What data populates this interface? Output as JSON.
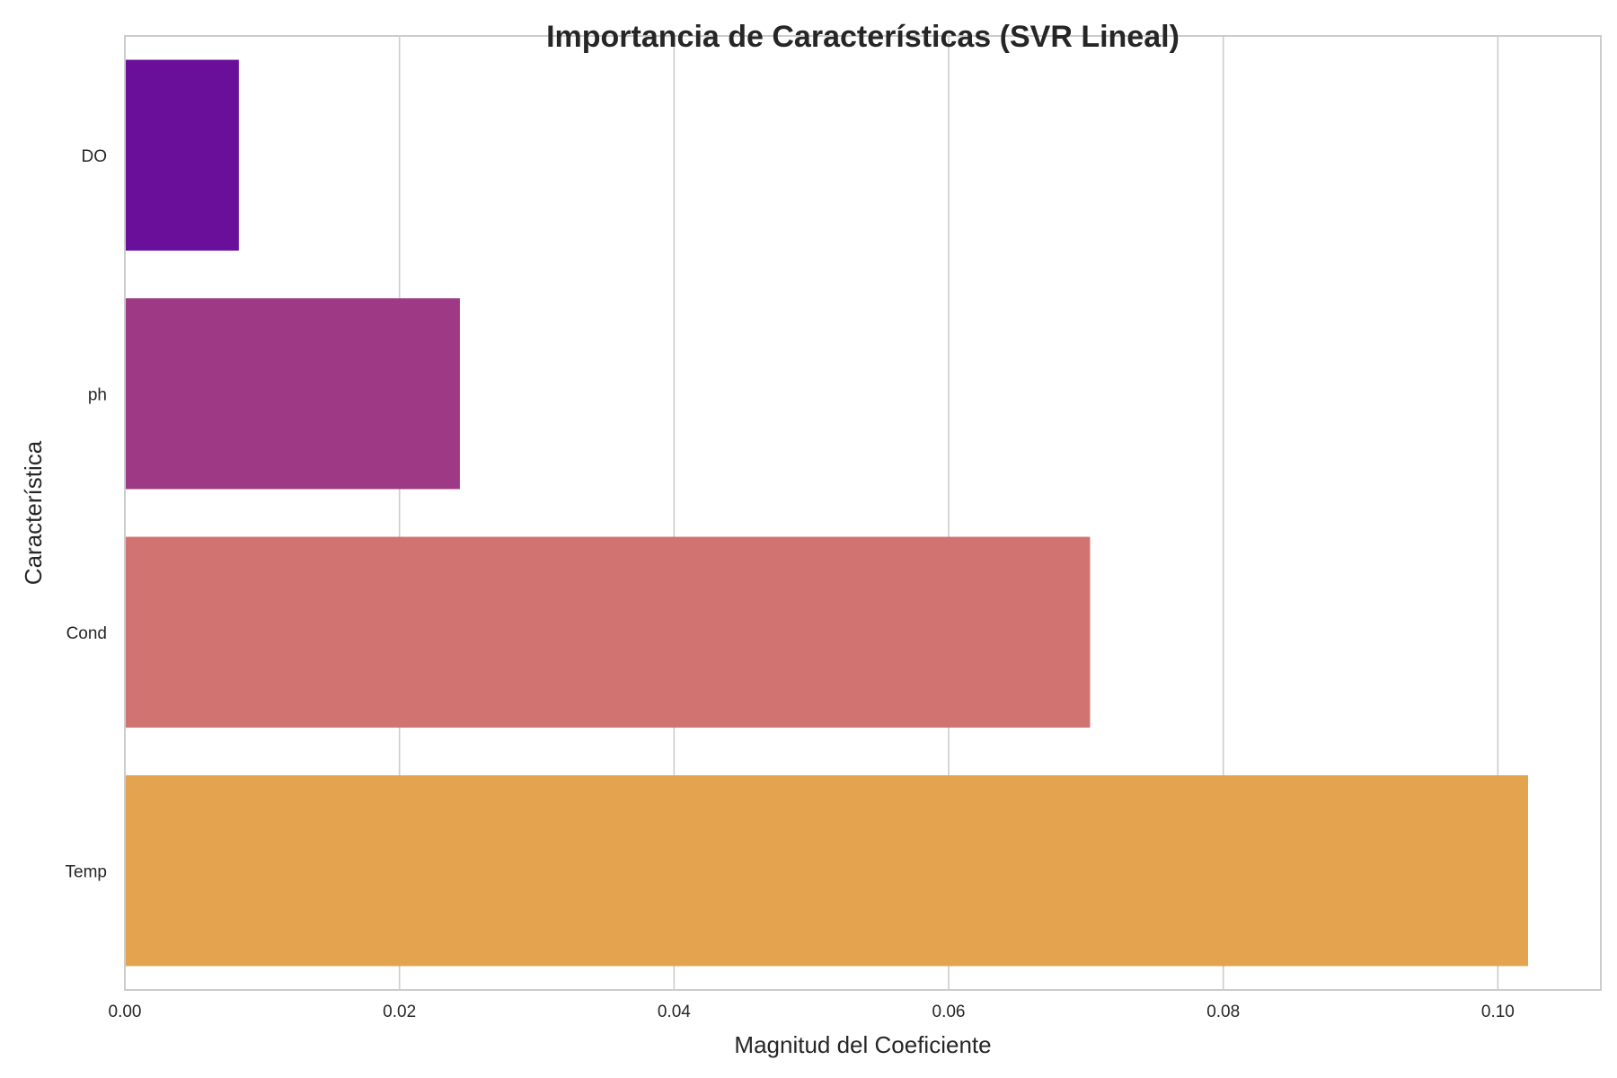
{
  "chart_data": {
    "type": "bar",
    "orientation": "horizontal",
    "title": "Importancia de Características (SVR Lineal)",
    "xlabel": "Magnitud del Coeficiente",
    "ylabel": "Característica",
    "categories": [
      "DO",
      "ph",
      "Cond",
      "Temp"
    ],
    "values": [
      0.0083,
      0.0244,
      0.0703,
      0.1022
    ],
    "colors": [
      "#6a0f99",
      "#9e3a85",
      "#d07371",
      "#e4a34f"
    ],
    "xlim": [
      0,
      0.1075
    ],
    "xticks": [
      0.0,
      0.02,
      0.04,
      0.06,
      0.08,
      0.1
    ],
    "xtick_labels": [
      "0.00",
      "0.02",
      "0.04",
      "0.06",
      "0.08",
      "0.10"
    ],
    "grid": "vertical",
    "legend": "none"
  }
}
